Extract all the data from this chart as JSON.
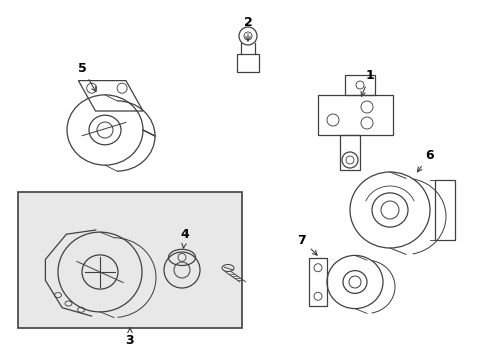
{
  "background_color": "#ffffff",
  "line_color": "#404040",
  "label_color": "#000000",
  "box_fill": "#e8e8e8",
  "figsize": [
    4.89,
    3.6
  ],
  "dpi": 100
}
